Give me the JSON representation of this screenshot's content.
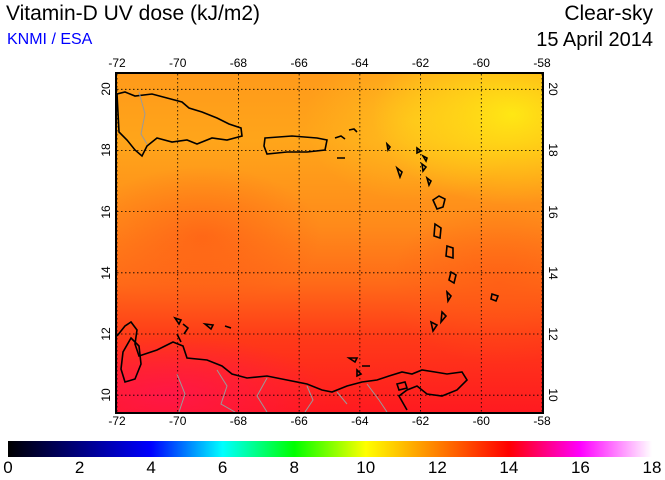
{
  "header": {
    "title": "Vitamin-D UV dose (kJ/m2)",
    "source": "KNMI / ESA",
    "condition": "Clear-sky",
    "date": "15 April 2014"
  },
  "map": {
    "lon_ticks": [
      "-72",
      "-70",
      "-68",
      "-66",
      "-64",
      "-62",
      "-60",
      "-58"
    ],
    "lon_values": [
      -72,
      -70,
      -68,
      -66,
      -64,
      -62,
      -60,
      -58
    ],
    "lat_ticks": [
      "20",
      "18",
      "16",
      "14",
      "12",
      "10"
    ],
    "lat_values": [
      20,
      18,
      16,
      14,
      12,
      10
    ],
    "lon_range": [
      -72,
      -58
    ],
    "lat_range": [
      9.45,
      20.5
    ]
  },
  "colorbar": {
    "ticks": [
      "0",
      "2",
      "4",
      "6",
      "8",
      "10",
      "12",
      "14",
      "16",
      "18"
    ],
    "range": [
      0,
      18
    ],
    "colors": [
      "#000000",
      "#000080",
      "#0000ff",
      "#00ffff",
      "#00ff00",
      "#ffff00",
      "#ff8000",
      "#ff0000",
      "#ff00ff",
      "#ffffff"
    ]
  }
}
